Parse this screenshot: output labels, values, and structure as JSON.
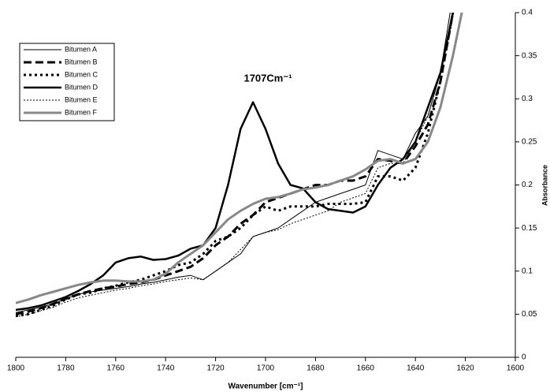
{
  "chart_data": {
    "type": "line",
    "annotation": "1707Cm⁻¹",
    "x_label": "Wavenumber [cm⁻¹]",
    "y_label": "Absorbance",
    "x": [
      1800,
      1795,
      1790,
      1785,
      1780,
      1775,
      1770,
      1765,
      1760,
      1755,
      1750,
      1745,
      1740,
      1735,
      1730,
      1725,
      1720,
      1715,
      1710,
      1705,
      1700,
      1695,
      1690,
      1685,
      1680,
      1675,
      1670,
      1665,
      1660,
      1655,
      1650,
      1645,
      1640,
      1635,
      1630,
      1625,
      1620
    ],
    "xlim": [
      1800,
      1600
    ],
    "xticks": [
      1800,
      1780,
      1760,
      1740,
      1720,
      1700,
      1680,
      1660,
      1640,
      1620,
      1600
    ],
    "ylim": [
      0,
      0.4
    ],
    "yticks": [
      0,
      0.05,
      0.1,
      0.15,
      0.2,
      0.25,
      0.3,
      0.35,
      0.4
    ],
    "y_axis_side": "right",
    "grid": false,
    "legend": "upper left",
    "series": [
      {
        "name": "Bitumen A",
        "color": "#000000",
        "line_style": "solid",
        "linewidth": 1,
        "values": [
          0.052,
          0.055,
          0.058,
          0.062,
          0.068,
          0.073,
          0.076,
          0.078,
          0.08,
          0.082,
          0.085,
          0.087,
          0.09,
          0.093,
          0.095,
          0.09,
          0.1,
          0.11,
          0.12,
          0.14,
          0.145,
          0.15,
          0.16,
          0.17,
          0.18,
          0.185,
          0.19,
          0.195,
          0.2,
          0.24,
          0.235,
          0.23,
          0.26,
          0.28,
          0.33,
          0.42,
          0.5
        ]
      },
      {
        "name": "Bitumen B",
        "color": "#000000",
        "line_style": "dashed",
        "linewidth": 3,
        "values": [
          0.05,
          0.053,
          0.057,
          0.062,
          0.068,
          0.073,
          0.077,
          0.08,
          0.082,
          0.085,
          0.087,
          0.09,
          0.095,
          0.1,
          0.105,
          0.115,
          0.13,
          0.14,
          0.155,
          0.165,
          0.18,
          0.185,
          0.19,
          0.195,
          0.2,
          0.2,
          0.205,
          0.205,
          0.21,
          0.23,
          0.228,
          0.225,
          0.245,
          0.27,
          0.32,
          0.4,
          0.5
        ]
      },
      {
        "name": "Bitumen C",
        "color": "#000000",
        "line_style": "dotted",
        "linewidth": 3,
        "values": [
          0.048,
          0.05,
          0.055,
          0.06,
          0.067,
          0.073,
          0.075,
          0.08,
          0.083,
          0.087,
          0.09,
          0.095,
          0.1,
          0.107,
          0.11,
          0.12,
          0.135,
          0.14,
          0.15,
          0.165,
          0.175,
          0.17,
          0.175,
          0.175,
          0.175,
          0.178,
          0.178,
          0.178,
          0.18,
          0.21,
          0.21,
          0.205,
          0.22,
          0.26,
          0.32,
          0.4,
          0.5
        ]
      },
      {
        "name": "Bitumen D",
        "color": "#000000",
        "line_style": "solid",
        "linewidth": 2.5,
        "values": [
          0.055,
          0.057,
          0.06,
          0.065,
          0.07,
          0.077,
          0.085,
          0.095,
          0.11,
          0.115,
          0.117,
          0.113,
          0.114,
          0.118,
          0.126,
          0.13,
          0.15,
          0.2,
          0.265,
          0.296,
          0.265,
          0.225,
          0.2,
          0.196,
          0.18,
          0.172,
          0.17,
          0.168,
          0.175,
          0.2,
          0.22,
          0.23,
          0.25,
          0.29,
          0.33,
          0.4,
          0.5
        ]
      },
      {
        "name": "Bitumen E",
        "color": "#000000",
        "line_style": "fine-dotted",
        "linewidth": 1,
        "values": [
          0.047,
          0.05,
          0.054,
          0.058,
          0.064,
          0.069,
          0.072,
          0.075,
          0.078,
          0.08,
          0.083,
          0.085,
          0.088,
          0.09,
          0.092,
          0.09,
          0.1,
          0.11,
          0.125,
          0.14,
          0.145,
          0.148,
          0.155,
          0.16,
          0.165,
          0.17,
          0.18,
          0.185,
          0.19,
          0.22,
          0.225,
          0.225,
          0.25,
          0.28,
          0.33,
          0.4,
          0.5
        ]
      },
      {
        "name": "Bitumen F",
        "color": "#888888",
        "line_style": "solid",
        "linewidth": 3,
        "values": [
          0.063,
          0.067,
          0.072,
          0.076,
          0.08,
          0.084,
          0.087,
          0.089,
          0.089,
          0.088,
          0.088,
          0.09,
          0.097,
          0.11,
          0.12,
          0.13,
          0.145,
          0.16,
          0.17,
          0.178,
          0.184,
          0.186,
          0.19,
          0.195,
          0.197,
          0.2,
          0.205,
          0.21,
          0.218,
          0.228,
          0.23,
          0.225,
          0.23,
          0.25,
          0.29,
          0.35,
          0.42
        ]
      }
    ]
  }
}
